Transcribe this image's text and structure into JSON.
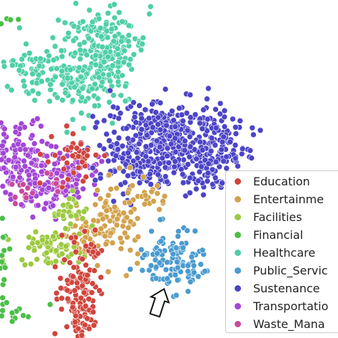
{
  "chart_data": {
    "type": "scatter",
    "title": "",
    "xlabel": "",
    "ylabel": "",
    "grid": false,
    "axes_visible": false,
    "legend_position": "bottom-right",
    "series": [
      {
        "name": "Education",
        "color": "#d1453d"
      },
      {
        "name": "Entertainme",
        "color": "#d2a24c"
      },
      {
        "name": "Facilities",
        "color": "#9cc93f"
      },
      {
        "name": "Financial",
        "color": "#4cbf48"
      },
      {
        "name": "Healthcare",
        "color": "#4fcfa8"
      },
      {
        "name": "Public_Servic",
        "color": "#4a9bd0"
      },
      {
        "name": "Sustenance",
        "color": "#4c44c7"
      },
      {
        "name": "Transportatio",
        "color": "#a346d6"
      },
      {
        "name": "Waste_Mana",
        "color": "#c84a9b"
      }
    ]
  }
}
